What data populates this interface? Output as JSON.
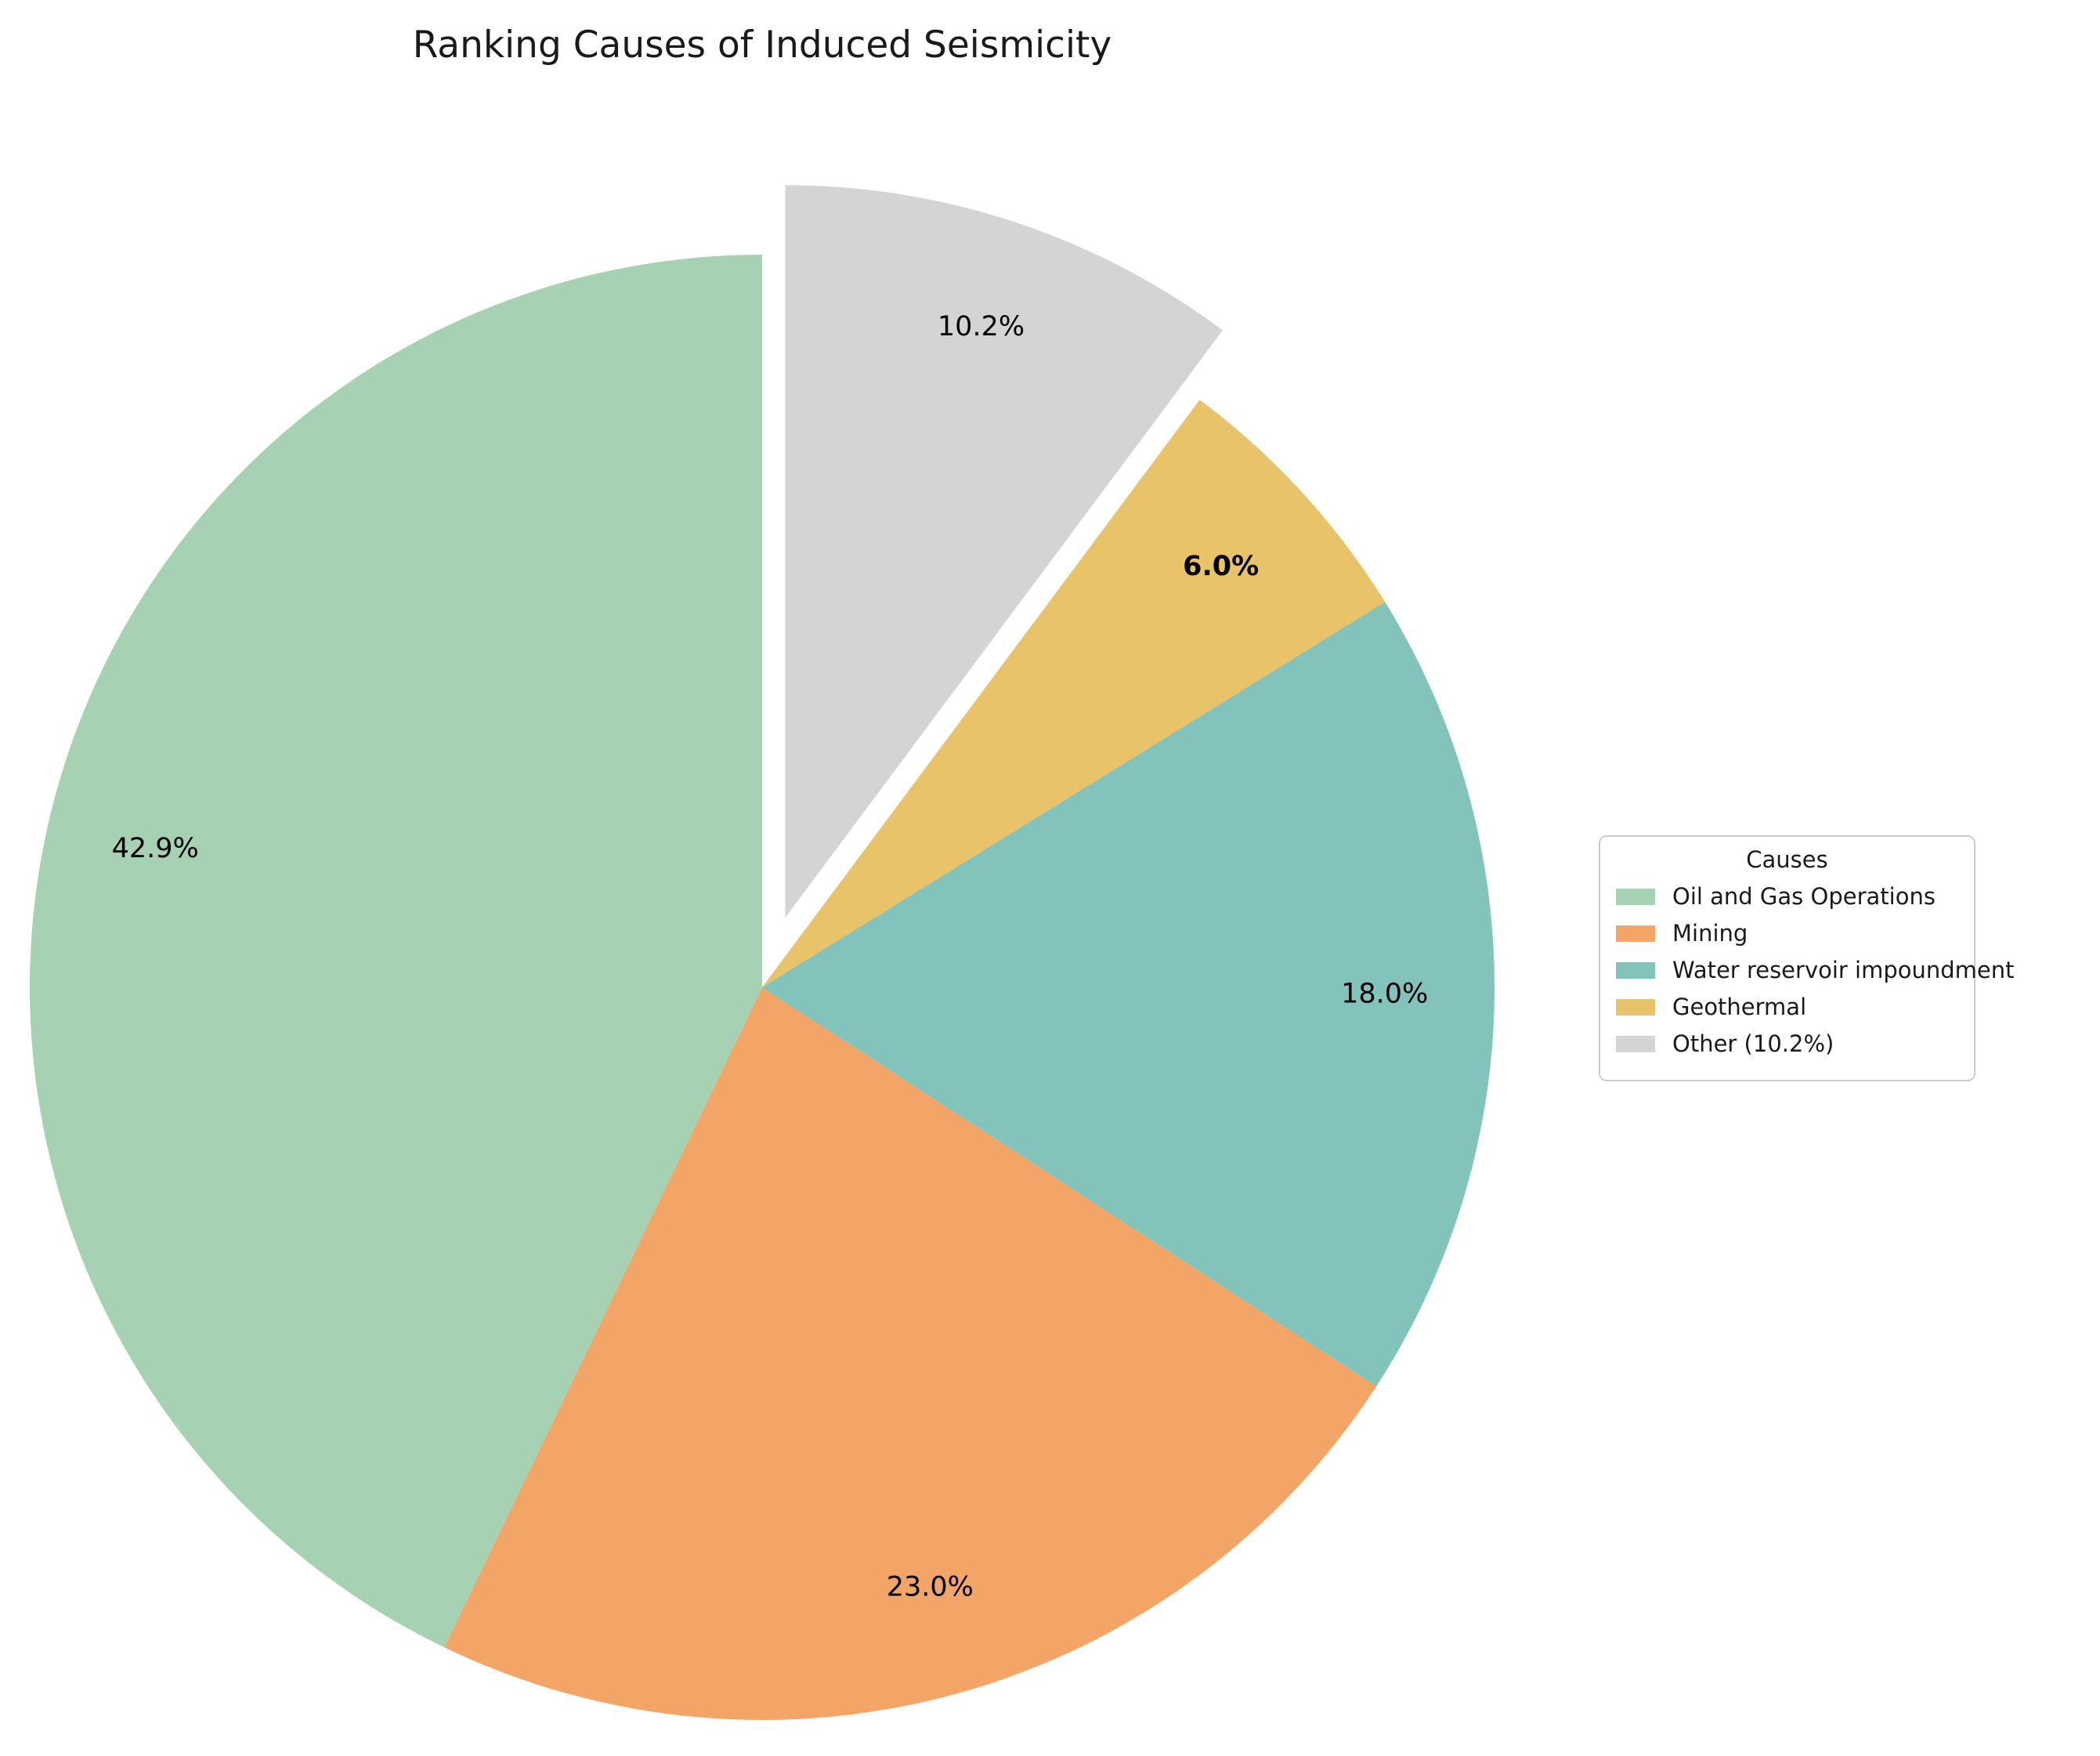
{
  "chart_data": {
    "type": "pie",
    "title": "Ranking Causes of Induced Seismicity",
    "categories": [
      "Oil and Gas Operations",
      "Mining",
      "Water reservoir impoundment",
      "Geothermal",
      "Other"
    ],
    "values": [
      42.9,
      23.0,
      18.0,
      6.0,
      10.2
    ],
    "slice_labels": [
      "42.9%",
      "23.0%",
      "18.0%",
      "6.0%",
      "10.2%"
    ],
    "bold_labels": [
      false,
      false,
      false,
      true,
      false
    ],
    "colors": [
      "#a6d2b3",
      "#f2a566",
      "#82c3bc",
      "#e8c369",
      "#d4d4d4"
    ],
    "start_angle": 90,
    "direction": "counterclockwise",
    "explode": [
      0,
      0,
      0,
      0,
      0.1
    ],
    "pct_distance": 0.85,
    "legend": {
      "title": "Causes",
      "position": "center-right",
      "entries": [
        "Oil and Gas Operations",
        "Mining",
        "Water reservoir impoundment",
        "Geothermal",
        "Other (10.2%)"
      ]
    }
  }
}
